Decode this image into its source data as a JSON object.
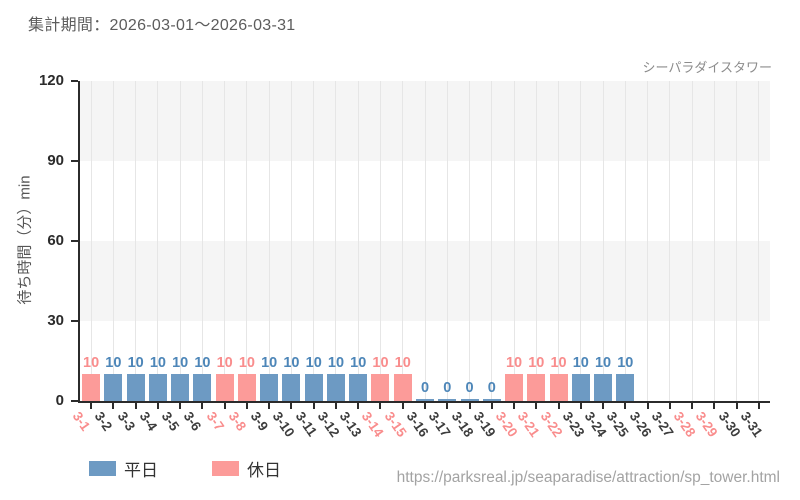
{
  "header": {
    "title": "集計期間：2026-03-01～2026-03-31"
  },
  "chart_data": {
    "type": "bar",
    "source_label": "シーパラダイスタワー",
    "ylabel": "待ち時間（分）min",
    "ylim": [
      0,
      120
    ],
    "yticks": [
      0,
      30,
      60,
      90,
      120
    ],
    "categories": [
      "3-1",
      "3-2",
      "3-3",
      "3-4",
      "3-5",
      "3-6",
      "3-7",
      "3-8",
      "3-9",
      "3-10",
      "3-11",
      "3-12",
      "3-13",
      "3-14",
      "3-15",
      "3-16",
      "3-17",
      "3-18",
      "3-19",
      "3-20",
      "3-21",
      "3-22",
      "3-23",
      "3-24",
      "3-25",
      "3-26",
      "3-27",
      "3-28",
      "3-29",
      "3-30",
      "3-31"
    ],
    "values": [
      10,
      10,
      10,
      10,
      10,
      10,
      10,
      10,
      10,
      10,
      10,
      10,
      10,
      10,
      10,
      0,
      0,
      0,
      0,
      10,
      10,
      10,
      10,
      10,
      10,
      null,
      null,
      null,
      null,
      null,
      null
    ],
    "day_types": [
      "holiday",
      "weekday",
      "weekday",
      "weekday",
      "weekday",
      "weekday",
      "holiday",
      "holiday",
      "weekday",
      "weekday",
      "weekday",
      "weekday",
      "weekday",
      "holiday",
      "holiday",
      "weekday",
      "weekday",
      "weekday",
      "weekday",
      "holiday",
      "holiday",
      "holiday",
      "weekday",
      "weekday",
      "weekday",
      "weekday",
      "weekday",
      "holiday",
      "holiday",
      "weekday",
      "weekday"
    ],
    "colors": {
      "weekday_bar": "#6d9ac3",
      "holiday_bar": "#fc9b99",
      "weekday_value_label": "#4d86b8",
      "holiday_value_label": "#f98d8d",
      "weekday_tick_label": "#3d3d3d",
      "holiday_tick_label": "#f98d8d",
      "band_fill": "#f5f5f5",
      "gridline": "#e6e6e6",
      "axis": "#2b2b2b"
    },
    "legend": [
      {
        "label": "平日",
        "type": "weekday"
      },
      {
        "label": "休日",
        "type": "holiday"
      }
    ],
    "layout": {
      "grid": "vertical lines at category centers; alternating horizontal bands every 30 units",
      "legend_position": "bottom-left",
      "bar_value_labels": "above bars for 3-1 through 3-25"
    }
  },
  "footer": {
    "url": "https://parksreal.jp/seaparadise/attraction/sp_tower.html"
  }
}
